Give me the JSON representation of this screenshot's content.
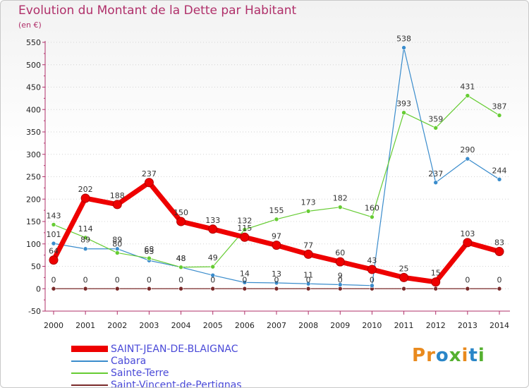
{
  "chart_data": {
    "type": "line",
    "title": "Evolution du Montant de la Dette par Habitant",
    "ylabel": "(en €)",
    "xlabel": "",
    "ylim": [
      -50,
      550
    ],
    "yticks": [
      "-50",
      "0",
      "50",
      "100",
      "150",
      "200",
      "250",
      "300",
      "350",
      "400",
      "450",
      "500",
      "550"
    ],
    "categories": [
      "2000",
      "2001",
      "2002",
      "2003",
      "2004",
      "2005",
      "2006",
      "2007",
      "2008",
      "2009",
      "2010",
      "2011",
      "2012",
      "2013",
      "2014"
    ],
    "series": [
      {
        "name": "Saint-Vincent-de-Pertignas",
        "color": "#7a2a2a",
        "values": [
          0,
          0,
          0,
          0,
          0,
          0,
          0,
          0,
          0,
          0,
          0,
          0,
          0,
          0,
          0
        ],
        "labels": [
          "0",
          "0",
          "0",
          "0",
          "0",
          "0",
          "0",
          "0",
          "0",
          "0",
          "0",
          "",
          "",
          "0",
          "0"
        ]
      },
      {
        "name": "Cabara",
        "color": "#3a8ccc",
        "values": [
          101,
          89,
          89,
          63,
          48,
          30,
          14,
          13,
          11,
          9,
          7,
          538,
          237,
          290,
          244
        ],
        "labels": [
          "101",
          "89",
          "89",
          "63",
          "48",
          "",
          "14",
          "13",
          "11",
          "9",
          "",
          "538",
          "237",
          "290",
          "244"
        ]
      },
      {
        "name": "Sainte-Terre",
        "color": "#66cc33",
        "values": [
          143,
          114,
          80,
          68,
          48,
          49,
          132,
          155,
          173,
          182,
          160,
          393,
          359,
          431,
          387
        ],
        "labels": [
          "143",
          "114",
          "80",
          "68",
          "48",
          "49",
          "132",
          "155",
          "173",
          "182",
          "160",
          "393",
          "359",
          "431",
          "387"
        ]
      },
      {
        "name": "SAINT-JEAN-DE-BLAIGNAC",
        "color": "#ee0000",
        "values": [
          64,
          202,
          188,
          237,
          150,
          133,
          115,
          97,
          77,
          60,
          43,
          25,
          15,
          103,
          83
        ],
        "labels": [
          "64",
          "202",
          "188",
          "237",
          "150",
          "133",
          "115",
          "97",
          "77",
          "60",
          "43",
          "25",
          "15",
          "103",
          "83"
        ]
      }
    ],
    "legend": [
      "SAINT-JEAN-DE-BLAIGNAC",
      "Cabara",
      "Sainte-Terre",
      "Saint-Vincent-de-Pertignas"
    ],
    "legend_position": "bottom-left"
  },
  "logo": {
    "text": "Proxiti",
    "chars": [
      "P",
      "r",
      "o",
      "x",
      "i",
      "t",
      "i"
    ]
  }
}
